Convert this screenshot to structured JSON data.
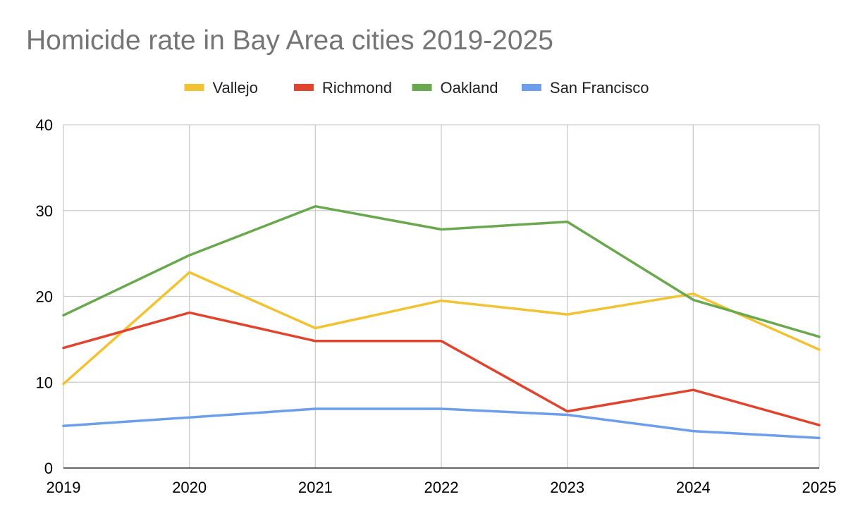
{
  "chart_data": {
    "type": "line",
    "title": "Homicide rate in Bay Area cities 2019-2025",
    "xlabel": "",
    "ylabel": "",
    "x": [
      "2019",
      "2020",
      "2021",
      "2022",
      "2023",
      "2024",
      "2025"
    ],
    "ylim": [
      0,
      40
    ],
    "yticks": [
      "0",
      "10",
      "20",
      "30",
      "40"
    ],
    "grid": true,
    "legend_position": "top",
    "series": [
      {
        "name": "Vallejo",
        "color": "#f1c232",
        "values": [
          9.8,
          22.8,
          16.3,
          19.5,
          17.9,
          20.3,
          13.8
        ]
      },
      {
        "name": "Richmond",
        "color": "#e0442f",
        "values": [
          14.0,
          18.1,
          14.8,
          14.8,
          6.6,
          9.1,
          5.0
        ]
      },
      {
        "name": "Oakland",
        "color": "#6aa84f",
        "values": [
          17.8,
          24.8,
          30.5,
          27.8,
          28.7,
          19.6,
          15.3
        ]
      },
      {
        "name": "San Francisco",
        "color": "#6d9eeb",
        "values": [
          4.9,
          5.9,
          6.9,
          6.9,
          6.2,
          4.3,
          3.5
        ]
      }
    ]
  }
}
